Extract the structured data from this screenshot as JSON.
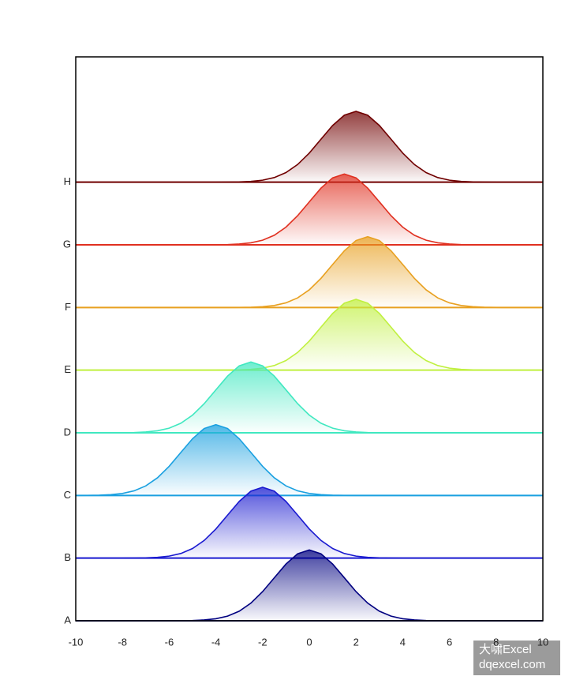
{
  "chart_data": {
    "type": "ridgeline",
    "x": [
      -10,
      -9.5,
      -9,
      -8.5,
      -8,
      -7.5,
      -7,
      -6.5,
      -6,
      -5.5,
      -5,
      -4.5,
      -4,
      -3.5,
      -3,
      -2.5,
      -2,
      -1.5,
      -1,
      -0.5,
      0,
      0.5,
      1,
      1.5,
      2,
      2.5,
      3,
      3.5,
      4,
      4.5,
      5,
      5.5,
      6,
      6.5,
      7,
      7.5,
      8,
      8.5,
      9,
      9.5,
      10
    ],
    "series": [
      {
        "name": "A",
        "color": "#000080",
        "values": [
          0,
          0,
          0,
          0,
          0,
          0,
          0,
          0,
          0,
          0.001,
          0.004,
          0.013,
          0.032,
          0.074,
          0.153,
          0.282,
          0.465,
          0.686,
          0.905,
          1.069,
          1.13,
          1.069,
          0.905,
          0.686,
          0.465,
          0.282,
          0.153,
          0.074,
          0.032,
          0.013,
          0.004,
          0.001,
          0,
          0,
          0,
          0,
          0,
          0,
          0,
          0,
          0
        ]
      },
      {
        "name": "B",
        "color": "#1a1ad0",
        "values": [
          0,
          0,
          0,
          0,
          0,
          0.001,
          0.004,
          0.013,
          0.032,
          0.074,
          0.153,
          0.282,
          0.465,
          0.686,
          0.905,
          1.069,
          1.13,
          1.069,
          0.905,
          0.686,
          0.465,
          0.282,
          0.153,
          0.074,
          0.032,
          0.013,
          0.004,
          0.001,
          0,
          0,
          0,
          0,
          0,
          0,
          0,
          0,
          0,
          0,
          0,
          0,
          0
        ]
      },
      {
        "name": "C",
        "color": "#1aa0e0",
        "values": [
          0,
          0.001,
          0.004,
          0.013,
          0.032,
          0.074,
          0.153,
          0.282,
          0.465,
          0.686,
          0.905,
          1.069,
          1.13,
          1.069,
          0.905,
          0.686,
          0.465,
          0.282,
          0.153,
          0.074,
          0.032,
          0.013,
          0.004,
          0.001,
          0,
          0,
          0,
          0,
          0,
          0,
          0,
          0,
          0,
          0,
          0,
          0,
          0,
          0,
          0,
          0,
          0
        ]
      },
      {
        "name": "D",
        "color": "#40e8c0",
        "values": [
          0,
          0,
          0,
          0,
          0.001,
          0.004,
          0.013,
          0.032,
          0.074,
          0.153,
          0.282,
          0.465,
          0.686,
          0.905,
          1.069,
          1.13,
          1.069,
          0.905,
          0.686,
          0.465,
          0.282,
          0.153,
          0.074,
          0.032,
          0.013,
          0.004,
          0.001,
          0,
          0,
          0,
          0,
          0,
          0,
          0,
          0,
          0,
          0,
          0,
          0,
          0,
          0
        ]
      },
      {
        "name": "E",
        "color": "#c0f040",
        "values": [
          0,
          0,
          0,
          0,
          0,
          0,
          0,
          0,
          0,
          0,
          0,
          0,
          0,
          0.001,
          0.004,
          0.013,
          0.032,
          0.074,
          0.153,
          0.282,
          0.465,
          0.686,
          0.905,
          1.069,
          1.13,
          1.069,
          0.905,
          0.686,
          0.465,
          0.282,
          0.153,
          0.074,
          0.032,
          0.013,
          0.004,
          0.001,
          0,
          0,
          0,
          0,
          0
        ]
      },
      {
        "name": "F",
        "color": "#e8a020",
        "values": [
          0,
          0,
          0,
          0,
          0,
          0,
          0,
          0,
          0,
          0,
          0,
          0,
          0,
          0,
          0.001,
          0.004,
          0.013,
          0.032,
          0.074,
          0.153,
          0.282,
          0.465,
          0.686,
          0.905,
          1.069,
          1.13,
          1.069,
          0.905,
          0.686,
          0.465,
          0.282,
          0.153,
          0.074,
          0.032,
          0.013,
          0.004,
          0.001,
          0,
          0,
          0,
          0
        ]
      },
      {
        "name": "G",
        "color": "#e03020",
        "values": [
          0,
          0,
          0,
          0,
          0,
          0,
          0,
          0,
          0,
          0,
          0,
          0,
          0.001,
          0.004,
          0.013,
          0.032,
          0.074,
          0.153,
          0.282,
          0.465,
          0.686,
          0.905,
          1.069,
          1.13,
          1.069,
          0.905,
          0.686,
          0.465,
          0.282,
          0.153,
          0.074,
          0.032,
          0.013,
          0.004,
          0.001,
          0,
          0,
          0,
          0,
          0,
          0
        ]
      },
      {
        "name": "H",
        "color": "#700000",
        "values": [
          0,
          0,
          0,
          0,
          0,
          0,
          0,
          0,
          0,
          0,
          0,
          0,
          0,
          0.001,
          0.004,
          0.013,
          0.032,
          0.074,
          0.153,
          0.282,
          0.465,
          0.686,
          0.905,
          1.069,
          1.13,
          1.069,
          0.905,
          0.686,
          0.465,
          0.282,
          0.153,
          0.074,
          0.032,
          0.013,
          0.004,
          0.001,
          0,
          0,
          0,
          0,
          0
        ]
      }
    ],
    "xlim": [
      -10,
      10
    ],
    "xticks": [
      -10,
      -8,
      -6,
      -4,
      -2,
      0,
      2,
      4,
      6,
      8,
      10
    ],
    "ylim": [
      0,
      9
    ],
    "watermark": [
      "大啸Excel",
      "dqexcel.com"
    ]
  }
}
